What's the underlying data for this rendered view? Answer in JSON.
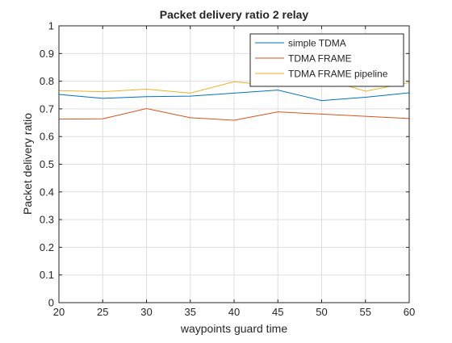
{
  "chart_data": {
    "type": "line",
    "title": "Packet delivery ratio 2 relay",
    "xlabel": "waypoints guard time",
    "ylabel": "Packet delivery ratio",
    "x": [
      20,
      25,
      30,
      35,
      40,
      45,
      50,
      55,
      60
    ],
    "xlim": [
      20,
      60
    ],
    "ylim": [
      0,
      1
    ],
    "xticks": [
      20,
      25,
      30,
      35,
      40,
      45,
      50,
      55,
      60
    ],
    "yticks": [
      0,
      0.1,
      0.2,
      0.3,
      0.4,
      0.5,
      0.6,
      0.7,
      0.8,
      0.9,
      1
    ],
    "xtick_labels": [
      "20",
      "25",
      "30",
      "35",
      "40",
      "45",
      "50",
      "55",
      "60"
    ],
    "ytick_labels": [
      "0",
      "0.1",
      "0.2",
      "0.3",
      "0.4",
      "0.5",
      "0.6",
      "0.7",
      "0.8",
      "0.9",
      "1"
    ],
    "grid": true,
    "legend_position": "top-right",
    "series": [
      {
        "name": "simple TDMA",
        "color": "#0072BD",
        "values": [
          0.752,
          0.738,
          0.744,
          0.746,
          0.757,
          0.768,
          0.73,
          0.742,
          0.758
        ]
      },
      {
        "name": "TDMA FRAME",
        "color": "#D95319",
        "values": [
          0.663,
          0.664,
          0.701,
          0.668,
          0.659,
          0.689,
          0.681,
          0.673,
          0.665
        ]
      },
      {
        "name": "TDMA FRAME pipeline",
        "color": "#EDB120",
        "values": [
          0.766,
          0.762,
          0.771,
          0.757,
          0.798,
          0.782,
          0.81,
          0.764,
          0.795
        ]
      }
    ]
  }
}
